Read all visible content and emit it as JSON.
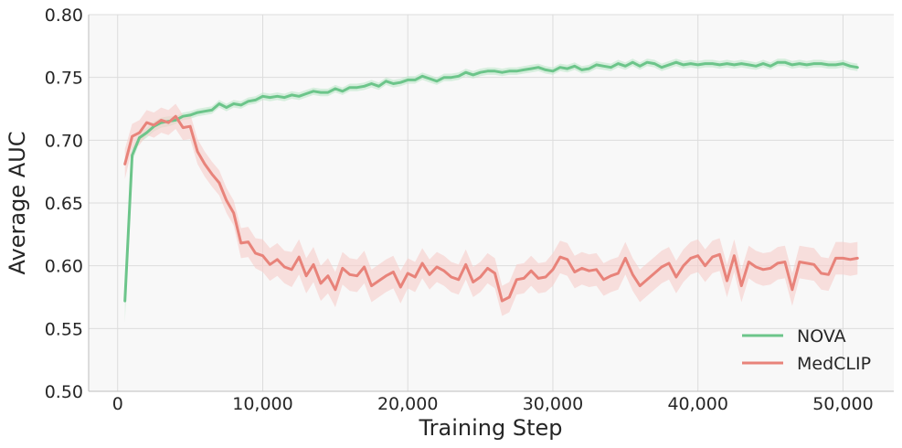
{
  "chart_data": {
    "type": "line",
    "title": "",
    "xlabel": "Training Step",
    "ylabel": "Average AUC",
    "xlim": [
      -2000,
      53500
    ],
    "ylim": [
      0.5,
      0.8
    ],
    "xticks": [
      0,
      10000,
      20000,
      30000,
      40000,
      50000
    ],
    "xtick_labels": [
      "0",
      "10,000",
      "20,000",
      "30,000",
      "40,000",
      "50,000"
    ],
    "yticks": [
      0.5,
      0.55,
      0.6,
      0.65,
      0.7,
      0.75,
      0.8
    ],
    "ytick_labels": [
      "0.50",
      "0.55",
      "0.60",
      "0.65",
      "0.70",
      "0.75",
      "0.80"
    ],
    "grid": true,
    "legend_position": "bottom-right",
    "series": [
      {
        "name": "NOVA",
        "color": "#6cc58a",
        "band_color": "#bfe8cc",
        "x": [
          500,
          1000,
          1500,
          2000,
          2500,
          3000,
          3500,
          4000,
          4500,
          5000,
          5500,
          6000,
          6500,
          7000,
          7500,
          8000,
          8500,
          9000,
          9500,
          10000,
          10500,
          11000,
          11500,
          12000,
          12500,
          13000,
          13500,
          14000,
          14500,
          15000,
          15500,
          16000,
          16500,
          17000,
          17500,
          18000,
          18500,
          19000,
          19500,
          20000,
          20500,
          21000,
          21500,
          22000,
          22500,
          23000,
          23500,
          24000,
          24500,
          25000,
          25500,
          26000,
          26500,
          27000,
          27500,
          28000,
          28500,
          29000,
          29500,
          30000,
          30500,
          31000,
          31500,
          32000,
          32500,
          33000,
          33500,
          34000,
          34500,
          35000,
          35500,
          36000,
          36500,
          37000,
          37500,
          38000,
          38500,
          39000,
          39500,
          40000,
          40500,
          41000,
          41500,
          42000,
          42500,
          43000,
          43500,
          44000,
          44500,
          45000,
          45500,
          46000,
          46500,
          47000,
          47500,
          48000,
          48500,
          49000,
          49500,
          50000,
          50500,
          51000
        ],
        "values": [
          0.572,
          0.688,
          0.702,
          0.706,
          0.711,
          0.714,
          0.715,
          0.716,
          0.719,
          0.72,
          0.722,
          0.723,
          0.724,
          0.729,
          0.726,
          0.729,
          0.728,
          0.731,
          0.732,
          0.735,
          0.734,
          0.735,
          0.734,
          0.736,
          0.735,
          0.737,
          0.739,
          0.738,
          0.738,
          0.741,
          0.739,
          0.742,
          0.742,
          0.743,
          0.745,
          0.743,
          0.747,
          0.745,
          0.746,
          0.748,
          0.748,
          0.751,
          0.749,
          0.747,
          0.75,
          0.75,
          0.751,
          0.754,
          0.752,
          0.754,
          0.755,
          0.755,
          0.754,
          0.755,
          0.755,
          0.756,
          0.757,
          0.758,
          0.756,
          0.755,
          0.758,
          0.757,
          0.759,
          0.756,
          0.757,
          0.76,
          0.759,
          0.758,
          0.761,
          0.759,
          0.762,
          0.759,
          0.762,
          0.761,
          0.758,
          0.76,
          0.762,
          0.76,
          0.761,
          0.76,
          0.761,
          0.761,
          0.76,
          0.761,
          0.76,
          0.761,
          0.76,
          0.759,
          0.761,
          0.759,
          0.762,
          0.762,
          0.76,
          0.761,
          0.76,
          0.761,
          0.761,
          0.76,
          0.76,
          0.761,
          0.759,
          0.758
        ],
        "band": [
          0.017,
          0.005,
          0.004,
          0.004,
          0.004,
          0.004,
          0.004,
          0.003,
          0.003,
          0.003,
          0.003,
          0.003,
          0.003,
          0.003,
          0.003,
          0.003,
          0.003,
          0.003,
          0.003,
          0.003,
          0.003,
          0.003,
          0.003,
          0.003,
          0.003,
          0.003,
          0.003,
          0.003,
          0.003,
          0.003,
          0.003,
          0.003,
          0.003,
          0.003,
          0.003,
          0.003,
          0.003,
          0.003,
          0.003,
          0.003,
          0.003,
          0.003,
          0.003,
          0.003,
          0.003,
          0.003,
          0.003,
          0.003,
          0.003,
          0.003,
          0.003,
          0.003,
          0.003,
          0.003,
          0.003,
          0.003,
          0.003,
          0.003,
          0.003,
          0.003,
          0.003,
          0.003,
          0.003,
          0.003,
          0.003,
          0.003,
          0.003,
          0.003,
          0.003,
          0.003,
          0.003,
          0.003,
          0.003,
          0.003,
          0.003,
          0.003,
          0.003,
          0.003,
          0.003,
          0.003,
          0.003,
          0.003,
          0.003,
          0.003,
          0.003,
          0.003,
          0.003,
          0.003,
          0.003,
          0.003,
          0.003,
          0.003,
          0.003,
          0.003,
          0.003,
          0.003,
          0.003,
          0.003,
          0.003,
          0.003,
          0.003,
          0.003
        ]
      },
      {
        "name": "MedCLIP",
        "color": "#e8837a",
        "band_color": "#f6cdc9",
        "x": [
          500,
          1000,
          1500,
          2000,
          2500,
          3000,
          3500,
          4000,
          4500,
          5000,
          5500,
          6000,
          6500,
          7000,
          7500,
          8000,
          8500,
          9000,
          9500,
          10000,
          10500,
          11000,
          11500,
          12000,
          12500,
          13000,
          13500,
          14000,
          14500,
          15000,
          15500,
          16000,
          16500,
          17000,
          17500,
          18000,
          18500,
          19000,
          19500,
          20000,
          20500,
          21000,
          21500,
          22000,
          22500,
          23000,
          23500,
          24000,
          24500,
          25000,
          25500,
          26000,
          26500,
          27000,
          27500,
          28000,
          28500,
          29000,
          29500,
          30000,
          30500,
          31000,
          31500,
          32000,
          32500,
          33000,
          33500,
          34000,
          34500,
          35000,
          35500,
          36000,
          36500,
          37000,
          37500,
          38000,
          38500,
          39000,
          39500,
          40000,
          40500,
          41000,
          41500,
          42000,
          42500,
          43000,
          43500,
          44000,
          44500,
          45000,
          45500,
          46000,
          46500,
          47000,
          47500,
          48000,
          48500,
          49000,
          49500,
          50000,
          50500,
          51000
        ],
        "values": [
          0.681,
          0.703,
          0.706,
          0.714,
          0.712,
          0.716,
          0.714,
          0.719,
          0.71,
          0.711,
          0.691,
          0.681,
          0.673,
          0.666,
          0.652,
          0.642,
          0.618,
          0.619,
          0.61,
          0.608,
          0.601,
          0.605,
          0.599,
          0.597,
          0.607,
          0.592,
          0.601,
          0.586,
          0.592,
          0.581,
          0.598,
          0.593,
          0.592,
          0.599,
          0.584,
          0.588,
          0.592,
          0.595,
          0.583,
          0.594,
          0.591,
          0.602,
          0.593,
          0.599,
          0.596,
          0.591,
          0.589,
          0.601,
          0.587,
          0.591,
          0.598,
          0.594,
          0.572,
          0.575,
          0.589,
          0.59,
          0.596,
          0.59,
          0.591,
          0.597,
          0.607,
          0.605,
          0.595,
          0.598,
          0.596,
          0.597,
          0.589,
          0.592,
          0.594,
          0.606,
          0.593,
          0.584,
          0.589,
          0.594,
          0.599,
          0.602,
          0.591,
          0.6,
          0.606,
          0.608,
          0.6,
          0.607,
          0.609,
          0.588,
          0.608,
          0.584,
          0.603,
          0.599,
          0.597,
          0.598,
          0.602,
          0.603,
          0.581,
          0.603,
          0.602,
          0.601,
          0.594,
          0.593,
          0.606,
          0.606,
          0.605,
          0.606
        ],
        "band": [
          0.012,
          0.01,
          0.01,
          0.01,
          0.01,
          0.01,
          0.01,
          0.01,
          0.01,
          0.01,
          0.01,
          0.01,
          0.01,
          0.01,
          0.01,
          0.01,
          0.012,
          0.012,
          0.012,
          0.013,
          0.013,
          0.013,
          0.013,
          0.014,
          0.014,
          0.014,
          0.014,
          0.014,
          0.014,
          0.014,
          0.013,
          0.013,
          0.013,
          0.013,
          0.013,
          0.013,
          0.013,
          0.013,
          0.013,
          0.012,
          0.012,
          0.012,
          0.012,
          0.012,
          0.012,
          0.012,
          0.012,
          0.012,
          0.012,
          0.012,
          0.012,
          0.012,
          0.012,
          0.012,
          0.012,
          0.012,
          0.012,
          0.012,
          0.012,
          0.013,
          0.013,
          0.013,
          0.013,
          0.013,
          0.013,
          0.013,
          0.013,
          0.013,
          0.013,
          0.013,
          0.013,
          0.013,
          0.013,
          0.013,
          0.013,
          0.013,
          0.013,
          0.013,
          0.013,
          0.013,
          0.013,
          0.013,
          0.013,
          0.013,
          0.013,
          0.013,
          0.013,
          0.013,
          0.013,
          0.013,
          0.013,
          0.013,
          0.013,
          0.013,
          0.013,
          0.013,
          0.013,
          0.013,
          0.013,
          0.013,
          0.013,
          0.013
        ]
      }
    ]
  }
}
